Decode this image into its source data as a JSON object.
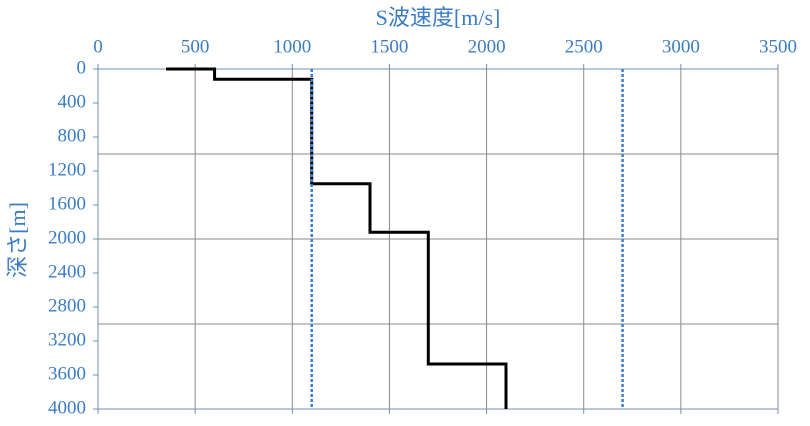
{
  "chart_data": {
    "type": "line",
    "x_label": "S波速度[m/s]",
    "y_label": "深さ[m]",
    "xlim": [
      0,
      3500
    ],
    "xticks": [
      0,
      500,
      1000,
      1500,
      2000,
      2500,
      3000,
      3500
    ],
    "ylim": [
      0,
      4000
    ],
    "yticks": [
      0,
      400,
      800,
      1200,
      1600,
      2000,
      2400,
      2800,
      3200,
      3600,
      4000
    ],
    "ygrid": [
      1000,
      2000,
      3000
    ],
    "y_reversed": true,
    "x_axis_position": "top",
    "grid": true,
    "series": [
      {
        "color": "#000000",
        "dash": "solid",
        "x": [
          350,
          600,
          600,
          1100,
          1100,
          1400,
          1400,
          1700,
          1700,
          2100,
          2100
        ],
        "y": [
          0,
          0,
          120,
          120,
          1350,
          1350,
          1920,
          1920,
          3470,
          3470,
          4000
        ]
      },
      {
        "color": "#3b7cd6",
        "dash": "dotted",
        "x": [
          1100,
          1100
        ],
        "y": [
          0,
          4000
        ]
      },
      {
        "color": "#3b7cd6",
        "dash": "dotted",
        "x": [
          2700,
          2700
        ],
        "y": [
          0,
          4000
        ]
      }
    ]
  }
}
